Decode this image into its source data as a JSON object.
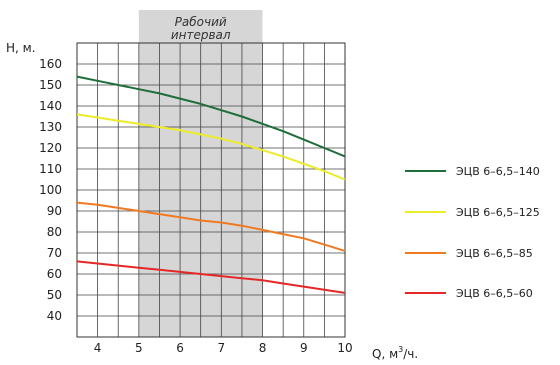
{
  "chart_data": {
    "type": "line",
    "ylabel": "Н, м.",
    "xlabel_main": "Q, м",
    "xlabel_sup": "3",
    "xlabel_tail": "/ч.",
    "xlim": [
      3.5,
      10
    ],
    "ylim": [
      30,
      170
    ],
    "x_ticks": [
      4,
      5,
      6,
      7,
      8,
      9,
      10
    ],
    "y_ticks": [
      40,
      50,
      60,
      70,
      80,
      90,
      100,
      110,
      120,
      130,
      140,
      150,
      160
    ],
    "x_grid_step": 0.5,
    "grid": true,
    "band": {
      "x0": 5,
      "x1": 8,
      "label_line1": "Рабочий",
      "label_line2": "интервал"
    },
    "legend_position": "right",
    "series": [
      {
        "name": "ЭЦВ 6–6,5–140",
        "color": "#1e6e3a",
        "x": [
          3.5,
          4,
          4.5,
          5,
          5.5,
          6,
          6.5,
          7,
          7.5,
          8,
          8.5,
          9,
          9.5,
          10
        ],
        "y": [
          154,
          152,
          150,
          148,
          146,
          143.5,
          141,
          138,
          135,
          131.5,
          128,
          124,
          120,
          116
        ]
      },
      {
        "name": "ЭЦВ 6–6,5–125",
        "color": "#ecec2a",
        "x": [
          3.5,
          4,
          4.5,
          5,
          5.5,
          6,
          6.5,
          7,
          7.5,
          8,
          8.5,
          9,
          9.5,
          10
        ],
        "y": [
          136,
          134.5,
          133,
          131.5,
          130,
          128.5,
          126.5,
          124.5,
          122,
          119,
          116,
          112.5,
          109,
          105
        ]
      },
      {
        "name": "ЭЦВ 6–6,5–85",
        "color": "#f07a22",
        "x": [
          3.5,
          4,
          4.5,
          5,
          5.5,
          6,
          6.5,
          7,
          7.5,
          8,
          8.5,
          9,
          9.5,
          10
        ],
        "y": [
          94,
          93,
          91.5,
          90,
          88.5,
          87,
          85.5,
          84.5,
          83,
          81,
          79,
          77,
          74,
          71
        ]
      },
      {
        "name": "ЭЦВ 6–6,5–60",
        "color": "#e42828",
        "x": [
          3.5,
          4,
          4.5,
          5,
          5.5,
          6,
          6.5,
          7,
          7.5,
          8,
          8.5,
          9,
          9.5,
          10
        ],
        "y": [
          66,
          65,
          64,
          63,
          62,
          61,
          60,
          59,
          58,
          57,
          55.5,
          54,
          52.5,
          51
        ]
      }
    ]
  }
}
